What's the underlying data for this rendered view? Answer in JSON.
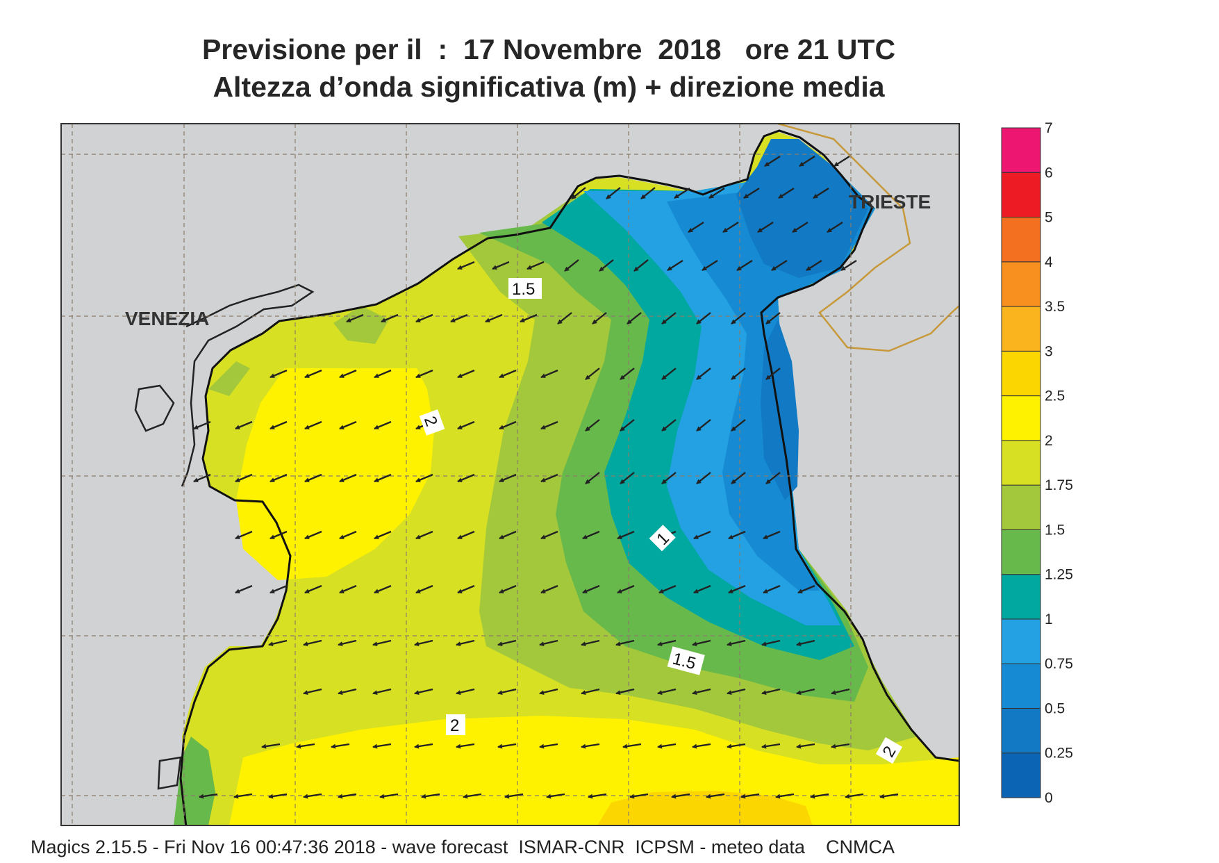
{
  "title_line1": "Previsione per il  :  17 Novembre  2018   ore 21 UTC",
  "title_line2": "Altezza d’onda significativa (m) + direzione media",
  "cities": {
    "venezia": "VENEZIA",
    "trieste": "TRIESTE"
  },
  "contour_labels": [
    "1.5",
    "2",
    "1",
    "1.5",
    "2",
    "2"
  ],
  "colorbar": {
    "ticks": [
      "0",
      "0.25",
      "0.5",
      "0.75",
      "1",
      "1.25",
      "1.5",
      "1.75",
      "2",
      "2.5",
      "3",
      "3.5",
      "4",
      "5",
      "6",
      "7"
    ],
    "colors": [
      "#0c65b4",
      "#1279c4",
      "#168bd3",
      "#23a1e3",
      "#00a8a0",
      "#68b94b",
      "#a4c83b",
      "#d7e023",
      "#fff200",
      "#fcd600",
      "#fab51e",
      "#f7901e",
      "#f47021",
      "#ed1c24",
      "#ed1670"
    ]
  },
  "colors": {
    "land": "#d0d2d3",
    "border": "#c8993a",
    "arrow": "#222222"
  },
  "footer": "Magics 2.15.5 - Fri Nov 16 00:47:36 2018 - wave forecast  ISMAR-CNR  ICPSM - meteo data    CNMCA"
}
